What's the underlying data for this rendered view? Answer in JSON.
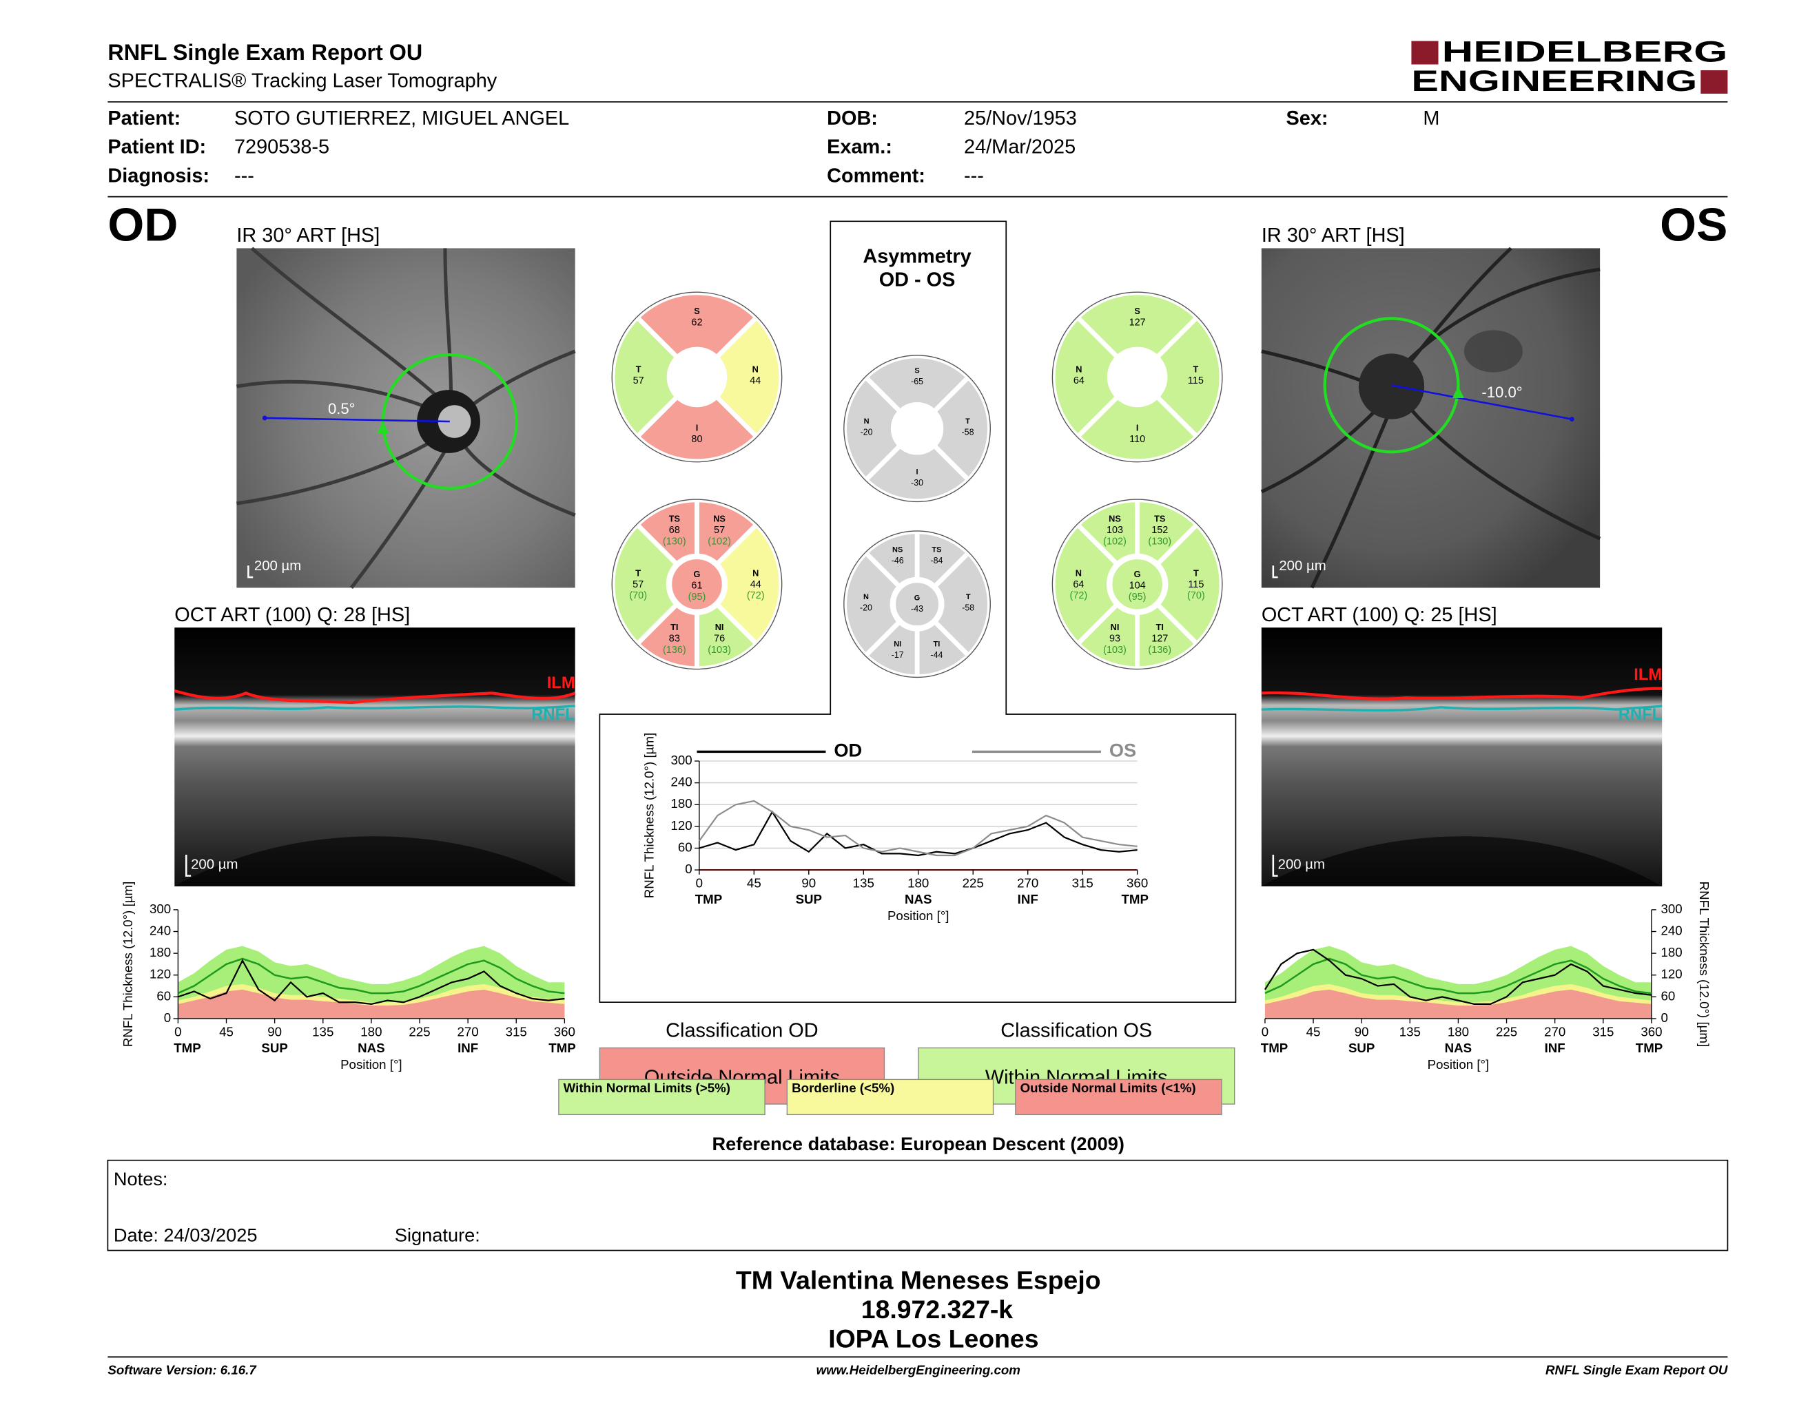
{
  "header": {
    "title": "RNFL Single Exam Report OU",
    "subtitle": "SPECTRALIS® Tracking Laser Tomography",
    "logo_top": "HEIDELBERG",
    "logo_bottom": "ENGINEERING"
  },
  "patient": {
    "columns": [
      [
        {
          "label": "Patient:",
          "value": "SOTO GUTIERREZ, MIGUEL ANGEL"
        },
        {
          "label": "Patient ID:",
          "value": "7290538-5"
        },
        {
          "label": "Diagnosis:",
          "value": "---"
        }
      ],
      [
        {
          "label": "DOB:",
          "value": "25/Nov/1953"
        },
        {
          "label": "Exam.:",
          "value": "24/Mar/2025"
        },
        {
          "label": "Comment:",
          "value": "---"
        }
      ],
      [
        {
          "label": "Sex:",
          "value": "M"
        }
      ]
    ]
  },
  "od": {
    "eye": "OD",
    "ir_title": "IR 30° ART [HS]",
    "ir_scale": "200 µm",
    "angle": "0.5°",
    "oct_title": "OCT ART (100) Q: 28 [HS]",
    "oct_scale": "200 µm",
    "ilm": "ILM",
    "rnfl": "RNFL",
    "quadrants": [
      {
        "label": "S",
        "value": 62,
        "color": "#f59f97"
      },
      {
        "label": "N",
        "value": 44,
        "color": "#f8f89c"
      },
      {
        "label": "I",
        "value": 80,
        "color": "#f59f97"
      },
      {
        "label": "T",
        "value": 57,
        "color": "#c8f293"
      }
    ],
    "sectors": [
      {
        "label": "NS",
        "value": 57,
        "ref": "(102)",
        "color": "#f59f97"
      },
      {
        "label": "N",
        "value": 44,
        "ref": "(72)",
        "color": "#f8f89c"
      },
      {
        "label": "NI",
        "value": 76,
        "ref": "(103)",
        "color": "#c8f293"
      },
      {
        "label": "TI",
        "value": 83,
        "ref": "(136)",
        "color": "#f59f97"
      },
      {
        "label": "T",
        "value": 57,
        "ref": "(70)",
        "color": "#c8f293"
      },
      {
        "label": "TS",
        "value": 68,
        "ref": "(130)",
        "color": "#f59f97"
      }
    ],
    "global": {
      "label": "G",
      "value": 61,
      "ref": "(95)",
      "color": "#f59f97"
    },
    "thickness": {
      "type": "line",
      "ylabel": "RNFL Thickness (12.0°) [µm]",
      "xlabel": "Position [°]",
      "yaxis_side": "left",
      "xlim": [
        0,
        360
      ],
      "ylim": [
        0,
        300
      ],
      "xticks": [
        0,
        45,
        90,
        135,
        180,
        225,
        270,
        315,
        360
      ],
      "yticks": [
        0,
        60,
        120,
        180,
        240,
        300
      ],
      "regions": [
        {
          "value": 0,
          "label": "TMP"
        },
        {
          "value": 90,
          "label": "SUP"
        },
        {
          "value": 180,
          "label": "NAS"
        },
        {
          "value": 270,
          "label": "INF"
        },
        {
          "value": 360,
          "label": "TMP"
        }
      ],
      "x": [
        0,
        15,
        30,
        45,
        60,
        75,
        90,
        105,
        120,
        135,
        150,
        165,
        180,
        195,
        210,
        225,
        240,
        255,
        270,
        285,
        300,
        315,
        330,
        345,
        360
      ],
      "bands": [
        {
          "color": "#a8ef7a",
          "values": [
            100,
            125,
            160,
            190,
            200,
            185,
            155,
            145,
            150,
            135,
            115,
            105,
            95,
            95,
            105,
            120,
            145,
            170,
            190,
            200,
            180,
            145,
            120,
            100,
            100
          ]
        },
        {
          "color": "#f4f48a",
          "values": [
            50,
            60,
            75,
            90,
            95,
            85,
            70,
            65,
            65,
            60,
            55,
            50,
            45,
            45,
            48,
            55,
            65,
            80,
            90,
            95,
            85,
            70,
            60,
            55,
            50
          ]
        },
        {
          "color": "#f39a90",
          "values": [
            40,
            50,
            60,
            75,
            80,
            70,
            58,
            52,
            52,
            48,
            45,
            40,
            36,
            36,
            38,
            45,
            55,
            65,
            75,
            80,
            70,
            58,
            48,
            44,
            40
          ]
        }
      ],
      "mean": {
        "color": "#1e9a1e",
        "values": [
          70,
          90,
          120,
          150,
          165,
          150,
          120,
          110,
          115,
          100,
          85,
          80,
          70,
          70,
          75,
          90,
          110,
          130,
          150,
          160,
          140,
          110,
          90,
          75,
          70
        ]
      },
      "series": [
        {
          "color": "#000000",
          "values": [
            60,
            75,
            55,
            70,
            160,
            80,
            50,
            100,
            60,
            70,
            45,
            45,
            40,
            50,
            45,
            60,
            80,
            100,
            110,
            130,
            90,
            70,
            55,
            50,
            55
          ]
        }
      ]
    }
  },
  "os": {
    "eye": "OS",
    "ir_title": "IR 30° ART [HS]",
    "ir_scale": "200 µm",
    "angle": "-10.0°",
    "oct_title": "OCT ART (100) Q: 25 [HS]",
    "oct_scale": "200 µm",
    "ilm": "ILM",
    "rnfl": "RNFL",
    "quadrants": [
      {
        "label": "S",
        "value": 127,
        "color": "#c8f293"
      },
      {
        "label": "T",
        "value": 115,
        "color": "#c8f293"
      },
      {
        "label": "I",
        "value": 110,
        "color": "#c8f293"
      },
      {
        "label": "N",
        "value": 64,
        "color": "#c8f293"
      }
    ],
    "sectors": [
      {
        "label": "TS",
        "value": 152,
        "ref": "(130)",
        "color": "#c8f293"
      },
      {
        "label": "T",
        "value": 115,
        "ref": "(70)",
        "color": "#c8f293"
      },
      {
        "label": "TI",
        "value": 127,
        "ref": "(136)",
        "color": "#c8f293"
      },
      {
        "label": "NI",
        "value": 93,
        "ref": "(103)",
        "color": "#c8f293"
      },
      {
        "label": "N",
        "value": 64,
        "ref": "(72)",
        "color": "#c8f293"
      },
      {
        "label": "NS",
        "value": 103,
        "ref": "(102)",
        "color": "#c8f293"
      }
    ],
    "global": {
      "label": "G",
      "value": 104,
      "ref": "(95)",
      "color": "#c8f293"
    },
    "thickness": {
      "type": "line",
      "ylabel": "RNFL Thickness (12.0°) [µm]",
      "xlabel": "Position [°]",
      "yaxis_side": "right",
      "xlim": [
        0,
        360
      ],
      "ylim": [
        0,
        300
      ],
      "xticks": [
        0,
        45,
        90,
        135,
        180,
        225,
        270,
        315,
        360
      ],
      "yticks": [
        0,
        60,
        120,
        180,
        240,
        300
      ],
      "regions": [
        {
          "value": 0,
          "label": "TMP"
        },
        {
          "value": 90,
          "label": "SUP"
        },
        {
          "value": 180,
          "label": "NAS"
        },
        {
          "value": 270,
          "label": "INF"
        },
        {
          "value": 360,
          "label": "TMP"
        }
      ],
      "x": [
        0,
        15,
        30,
        45,
        60,
        75,
        90,
        105,
        120,
        135,
        150,
        165,
        180,
        195,
        210,
        225,
        240,
        255,
        270,
        285,
        300,
        315,
        330,
        345,
        360
      ],
      "bands": [
        {
          "color": "#a8ef7a",
          "values": [
            100,
            125,
            160,
            190,
            200,
            185,
            155,
            145,
            150,
            135,
            115,
            105,
            95,
            95,
            105,
            120,
            145,
            170,
            190,
            200,
            180,
            145,
            120,
            100,
            100
          ]
        },
        {
          "color": "#f4f48a",
          "values": [
            50,
            60,
            75,
            90,
            95,
            85,
            70,
            65,
            65,
            60,
            55,
            50,
            45,
            45,
            48,
            55,
            65,
            80,
            90,
            95,
            85,
            70,
            60,
            55,
            50
          ]
        },
        {
          "color": "#f39a90",
          "values": [
            40,
            50,
            60,
            75,
            80,
            70,
            58,
            52,
            52,
            48,
            45,
            40,
            36,
            36,
            38,
            45,
            55,
            65,
            75,
            80,
            70,
            58,
            48,
            44,
            40
          ]
        }
      ],
      "mean": {
        "color": "#1e9a1e",
        "values": [
          70,
          90,
          120,
          150,
          165,
          150,
          120,
          110,
          115,
          100,
          85,
          80,
          70,
          70,
          75,
          90,
          110,
          130,
          150,
          160,
          140,
          110,
          90,
          75,
          70
        ]
      },
      "series": [
        {
          "color": "#000000",
          "values": [
            80,
            150,
            180,
            190,
            160,
            120,
            110,
            90,
            95,
            60,
            50,
            60,
            50,
            40,
            40,
            60,
            100,
            110,
            120,
            150,
            130,
            90,
            80,
            70,
            65
          ]
        }
      ]
    }
  },
  "asymmetry": {
    "title": "Asymmetry",
    "subtitle": "OD - OS",
    "quadrants": [
      {
        "label": "S",
        "value": -65,
        "color": "#d4d4d4"
      },
      {
        "label": "T",
        "value": -58,
        "color": "#d4d4d4"
      },
      {
        "label": "I",
        "value": -30,
        "color": "#d4d4d4"
      },
      {
        "label": "N",
        "value": -20,
        "color": "#d4d4d4"
      }
    ],
    "sectors": [
      {
        "label": "TS",
        "value": -84,
        "color": "#d4d4d4"
      },
      {
        "label": "T",
        "value": -58,
        "color": "#d4d4d4"
      },
      {
        "label": "TI",
        "value": -44,
        "color": "#d4d4d4"
      },
      {
        "label": "NI",
        "value": -17,
        "color": "#d4d4d4"
      },
      {
        "label": "N",
        "value": -20,
        "color": "#d4d4d4"
      },
      {
        "label": "NS",
        "value": -46,
        "color": "#d4d4d4"
      }
    ],
    "global": {
      "label": "G",
      "value": -43,
      "color": "#d4d4d4"
    },
    "chart": {
      "type": "line",
      "ylabel": "RNFL Thickness (12.0°) [µm]",
      "xlabel": "Position [°]",
      "grid": true,
      "xlim": [
        0,
        360
      ],
      "ylim": [
        0,
        300
      ],
      "xticks": [
        0,
        45,
        90,
        135,
        180,
        225,
        270,
        315,
        360
      ],
      "yticks": [
        0,
        60,
        120,
        180,
        240,
        300
      ],
      "regions": [
        {
          "value": 0,
          "label": "TMP"
        },
        {
          "value": 90,
          "label": "SUP"
        },
        {
          "value": 180,
          "label": "NAS"
        },
        {
          "value": 270,
          "label": "INF"
        },
        {
          "value": 360,
          "label": "TMP"
        }
      ],
      "x": [
        0,
        15,
        30,
        45,
        60,
        75,
        90,
        105,
        120,
        135,
        150,
        165,
        180,
        195,
        210,
        225,
        240,
        255,
        270,
        285,
        300,
        315,
        330,
        345,
        360
      ],
      "series": [
        {
          "name": "OD",
          "color": "#000000",
          "values": [
            60,
            75,
            55,
            70,
            160,
            80,
            50,
            100,
            60,
            70,
            45,
            45,
            40,
            50,
            45,
            60,
            80,
            100,
            110,
            130,
            90,
            70,
            55,
            50,
            55
          ]
        },
        {
          "name": "OS",
          "color": "#8c8c8c",
          "values": [
            80,
            150,
            180,
            190,
            160,
            120,
            110,
            90,
            95,
            60,
            50,
            60,
            50,
            40,
            40,
            60,
            100,
            110,
            120,
            150,
            130,
            90,
            80,
            70,
            65
          ]
        }
      ]
    }
  },
  "classification": [
    {
      "title": "Classification OD",
      "result": "Outside Normal Limits",
      "color": "#f4948c"
    },
    {
      "title": "Classification OS",
      "result": "Within Normal Limits",
      "color": "#c8f59a"
    }
  ],
  "legend": [
    {
      "label": "Within Normal Limits (>5%)",
      "color": "#c8f59a"
    },
    {
      "label": "Borderline (<5%)",
      "color": "#f8f89c"
    },
    {
      "label": "Outside Normal Limits (<1%)",
      "color": "#f4948c"
    }
  ],
  "reference": "Reference database: European Descent (2009)",
  "notes": {
    "label": "Notes:",
    "date": "Date: 24/03/2025",
    "signature": "Signature:"
  },
  "signoff": [
    "TM Valentina Meneses Espejo",
    "18.972.327-k",
    "IOPA Los Leones"
  ],
  "footer": {
    "left": "Software Version: 6.16.7",
    "center": "www.HeidelbergEngineering.com",
    "right": "RNFL Single Exam Report OU"
  }
}
